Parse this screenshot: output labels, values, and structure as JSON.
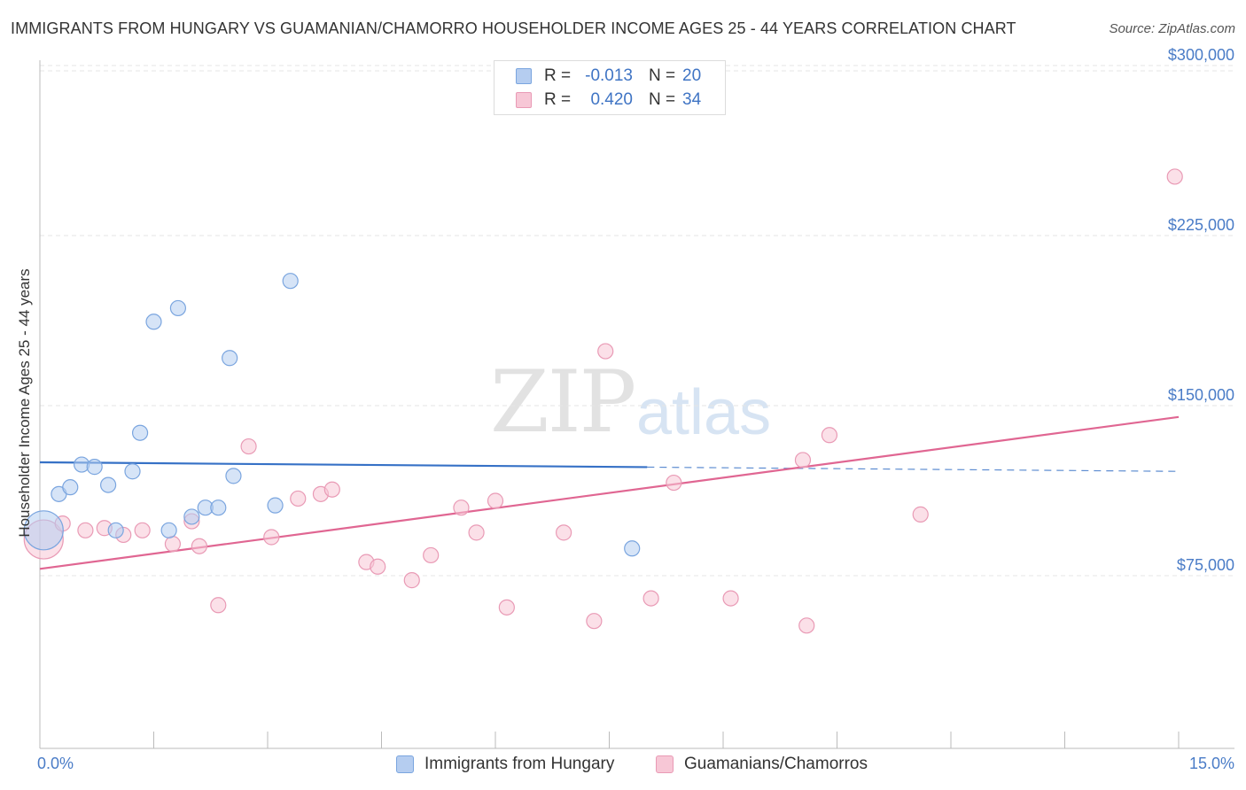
{
  "title": "IMMIGRANTS FROM HUNGARY VS GUAMANIAN/CHAMORRO HOUSEHOLDER INCOME AGES 25 - 44 YEARS CORRELATION CHART",
  "source": "Source: ZipAtlas.com",
  "watermark": {
    "part1": "ZIP",
    "part2": "atlas"
  },
  "stats": [
    {
      "r_label": "R =",
      "r_value": "-0.013",
      "n_label": "N =",
      "n_value": "20"
    },
    {
      "r_label": "R =",
      "r_value": "0.420",
      "n_label": "N =",
      "n_value": "34"
    }
  ],
  "legend": [
    {
      "label": "Immigrants from Hungary"
    },
    {
      "label": "Guamanians/Chamorros"
    }
  ],
  "colors": {
    "series_a_fill": "#b5cdf0",
    "series_a_stroke": "#7aa5df",
    "series_a_line": "#3671c6",
    "series_b_fill": "#f7c7d6",
    "series_b_stroke": "#e99ab5",
    "series_b_line": "#e06692",
    "grid": "#e6e6e6",
    "tick_label": "#4a7cc7"
  },
  "chart_data": {
    "type": "scatter",
    "title": "IMMIGRANTS FROM HUNGARY VS GUAMANIAN/CHAMORRO HOUSEHOLDER INCOME AGES 25 - 44 YEARS CORRELATION CHART",
    "xlabel": "",
    "ylabel": "Householder Income Ages 25 - 44 years",
    "xlim": [
      0,
      15
    ],
    "ylim": [
      0,
      310000
    ],
    "x_tick_labels": [
      "0.0%",
      "15.0%"
    ],
    "y_ticks": [
      {
        "value": 75000,
        "label": "$75,000"
      },
      {
        "value": 150000,
        "label": "$150,000"
      },
      {
        "value": 225000,
        "label": "$225,000"
      },
      {
        "value": 300000,
        "label": "$300,000"
      }
    ],
    "grid": true,
    "legend_position": "bottom-center",
    "series": [
      {
        "name": "Immigrants from Hungary",
        "r": -0.013,
        "n": 20,
        "trend": {
          "x": [
            0,
            15
          ],
          "y": [
            125000,
            121000
          ],
          "solid_until_x": 8.0
        },
        "points": [
          {
            "x": 0.05,
            "y": 95000,
            "size": "large"
          },
          {
            "x": 0.25,
            "y": 111000
          },
          {
            "x": 0.4,
            "y": 114000
          },
          {
            "x": 0.55,
            "y": 124000
          },
          {
            "x": 0.72,
            "y": 123000
          },
          {
            "x": 0.9,
            "y": 115000
          },
          {
            "x": 1.0,
            "y": 95000
          },
          {
            "x": 1.22,
            "y": 121000
          },
          {
            "x": 1.32,
            "y": 138000
          },
          {
            "x": 1.5,
            "y": 187000
          },
          {
            "x": 1.7,
            "y": 95000
          },
          {
            "x": 1.82,
            "y": 193000
          },
          {
            "x": 2.0,
            "y": 101000
          },
          {
            "x": 2.18,
            "y": 105000
          },
          {
            "x": 2.35,
            "y": 105000
          },
          {
            "x": 2.5,
            "y": 171000
          },
          {
            "x": 2.55,
            "y": 119000
          },
          {
            "x": 3.1,
            "y": 106000
          },
          {
            "x": 3.3,
            "y": 205000
          },
          {
            "x": 7.8,
            "y": 87000
          }
        ]
      },
      {
        "name": "Guamanians/Chamorros",
        "r": 0.42,
        "n": 34,
        "trend": {
          "x": [
            0,
            15
          ],
          "y": [
            78000,
            145000
          ]
        },
        "points": [
          {
            "x": 0.05,
            "y": 91000,
            "size": "large"
          },
          {
            "x": 0.3,
            "y": 98000
          },
          {
            "x": 0.6,
            "y": 95000
          },
          {
            "x": 0.85,
            "y": 96000
          },
          {
            "x": 1.1,
            "y": 93000
          },
          {
            "x": 1.35,
            "y": 95000
          },
          {
            "x": 1.75,
            "y": 89000
          },
          {
            "x": 2.0,
            "y": 99000
          },
          {
            "x": 2.1,
            "y": 88000
          },
          {
            "x": 2.35,
            "y": 62000
          },
          {
            "x": 2.75,
            "y": 132000
          },
          {
            "x": 3.05,
            "y": 92000
          },
          {
            "x": 3.4,
            "y": 109000
          },
          {
            "x": 3.7,
            "y": 111000
          },
          {
            "x": 3.85,
            "y": 113000
          },
          {
            "x": 4.3,
            "y": 81000
          },
          {
            "x": 4.45,
            "y": 79000
          },
          {
            "x": 4.9,
            "y": 73000
          },
          {
            "x": 5.15,
            "y": 84000
          },
          {
            "x": 5.55,
            "y": 105000
          },
          {
            "x": 5.75,
            "y": 94000
          },
          {
            "x": 6.0,
            "y": 108000
          },
          {
            "x": 6.15,
            "y": 61000
          },
          {
            "x": 6.9,
            "y": 94000
          },
          {
            "x": 7.3,
            "y": 55000
          },
          {
            "x": 7.45,
            "y": 174000
          },
          {
            "x": 8.05,
            "y": 65000
          },
          {
            "x": 8.35,
            "y": 116000
          },
          {
            "x": 9.1,
            "y": 65000
          },
          {
            "x": 10.05,
            "y": 126000
          },
          {
            "x": 10.1,
            "y": 53000
          },
          {
            "x": 10.4,
            "y": 137000
          },
          {
            "x": 11.6,
            "y": 102000
          },
          {
            "x": 14.95,
            "y": 251000
          }
        ]
      }
    ]
  }
}
